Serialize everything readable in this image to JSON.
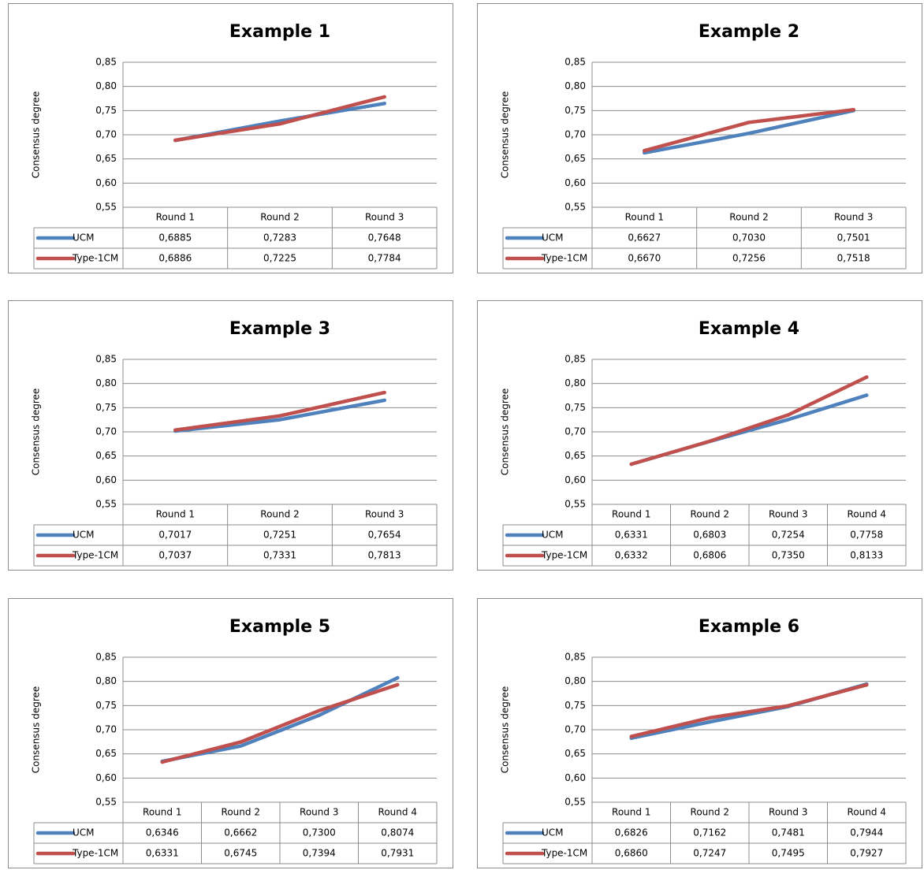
{
  "chart_data": [
    {
      "type": "line",
      "title": "Example 1",
      "ylabel": "Consensus degree",
      "ylim": [
        0.55,
        0.85
      ],
      "yticks": [
        "0,55",
        "0,60",
        "0,65",
        "0,70",
        "0,75",
        "0,80",
        "0,85"
      ],
      "categories": [
        "Round 1",
        "Round 2",
        "Round 3"
      ],
      "series": [
        {
          "name": "UCM",
          "color": "#4f81bd",
          "values": [
            0.6885,
            0.7283,
            0.7648
          ],
          "labels": [
            "0,6885",
            "0,7283",
            "0,7648"
          ]
        },
        {
          "name": "Type-1CM",
          "color": "#c0504d",
          "values": [
            0.6886,
            0.7225,
            0.7784
          ],
          "labels": [
            "0,6886",
            "0,7225",
            "0,7784"
          ]
        }
      ]
    },
    {
      "type": "line",
      "title": "Example 2",
      "ylabel": "Consensus degree",
      "ylim": [
        0.55,
        0.85
      ],
      "yticks": [
        "0,55",
        "0,60",
        "0,65",
        "0,70",
        "0,75",
        "0,80",
        "0,85"
      ],
      "categories": [
        "Round 1",
        "Round 2",
        "Round 3"
      ],
      "series": [
        {
          "name": "UCM",
          "color": "#4f81bd",
          "values": [
            0.6627,
            0.703,
            0.7501
          ],
          "labels": [
            "0,6627",
            "0,7030",
            "0,7501"
          ]
        },
        {
          "name": "Type-1CM",
          "color": "#c0504d",
          "values": [
            0.667,
            0.7256,
            0.7518
          ],
          "labels": [
            "0,6670",
            "0,7256",
            "0,7518"
          ]
        }
      ]
    },
    {
      "type": "line",
      "title": "Example 3",
      "ylabel": "Consensus degree",
      "ylim": [
        0.55,
        0.85
      ],
      "yticks": [
        "0,55",
        "0,60",
        "0,65",
        "0,70",
        "0,75",
        "0,80",
        "0,85"
      ],
      "categories": [
        "Round 1",
        "Round 2",
        "Round 3"
      ],
      "series": [
        {
          "name": "UCM",
          "color": "#4f81bd",
          "values": [
            0.7017,
            0.7251,
            0.7654
          ],
          "labels": [
            "0,7017",
            "0,7251",
            "0,7654"
          ]
        },
        {
          "name": "Type-1CM",
          "color": "#c0504d",
          "values": [
            0.7037,
            0.7331,
            0.7813
          ],
          "labels": [
            "0,7037",
            "0,7331",
            "0,7813"
          ]
        }
      ]
    },
    {
      "type": "line",
      "title": "Example 4",
      "ylabel": "Consensus degree",
      "ylim": [
        0.55,
        0.85
      ],
      "yticks": [
        "0,55",
        "0,60",
        "0,65",
        "0,70",
        "0,75",
        "0,80",
        "0,85"
      ],
      "categories": [
        "Round 1",
        "Round 2",
        "Round 3",
        "Round 4"
      ],
      "series": [
        {
          "name": "UCM",
          "color": "#4f81bd",
          "values": [
            0.6331,
            0.6803,
            0.7254,
            0.7758
          ],
          "labels": [
            "0,6331",
            "0,6803",
            "0,7254",
            "0,7758"
          ]
        },
        {
          "name": "Type-1CM",
          "color": "#c0504d",
          "values": [
            0.6332,
            0.6806,
            0.735,
            0.8133
          ],
          "labels": [
            "0,6332",
            "0,6806",
            "0,7350",
            "0,8133"
          ]
        }
      ]
    },
    {
      "type": "line",
      "title": "Example 5",
      "ylabel": "Consensus degree",
      "ylim": [
        0.55,
        0.85
      ],
      "yticks": [
        "0,55",
        "0,60",
        "0,65",
        "0,70",
        "0,75",
        "0,80",
        "0,85"
      ],
      "categories": [
        "Round 1",
        "Round 2",
        "Round 3",
        "Round 4"
      ],
      "series": [
        {
          "name": "UCM",
          "color": "#4f81bd",
          "values": [
            0.6346,
            0.6662,
            0.73,
            0.8074
          ],
          "labels": [
            "0,6346",
            "0,6662",
            "0,7300",
            "0,8074"
          ]
        },
        {
          "name": "Type-1CM",
          "color": "#c0504d",
          "values": [
            0.6331,
            0.6745,
            0.7394,
            0.7931
          ],
          "labels": [
            "0,6331",
            "0,6745",
            "0,7394",
            "0,7931"
          ]
        }
      ]
    },
    {
      "type": "line",
      "title": "Example 6",
      "ylabel": "Consensus degree",
      "ylim": [
        0.55,
        0.85
      ],
      "yticks": [
        "0,55",
        "0,60",
        "0,65",
        "0,70",
        "0,75",
        "0,80",
        "0,85"
      ],
      "categories": [
        "Round 1",
        "Round 2",
        "Round 3",
        "Round 4"
      ],
      "series": [
        {
          "name": "UCM",
          "color": "#4f81bd",
          "values": [
            0.6826,
            0.7162,
            0.7481,
            0.7944
          ],
          "labels": [
            "0,6826",
            "0,7162",
            "0,7481",
            "0,7944"
          ]
        },
        {
          "name": "Type-1CM",
          "color": "#c0504d",
          "values": [
            0.686,
            0.7247,
            0.7495,
            0.7927
          ],
          "labels": [
            "0,6860",
            "0,7247",
            "0,7495",
            "0,7927"
          ]
        }
      ]
    }
  ]
}
